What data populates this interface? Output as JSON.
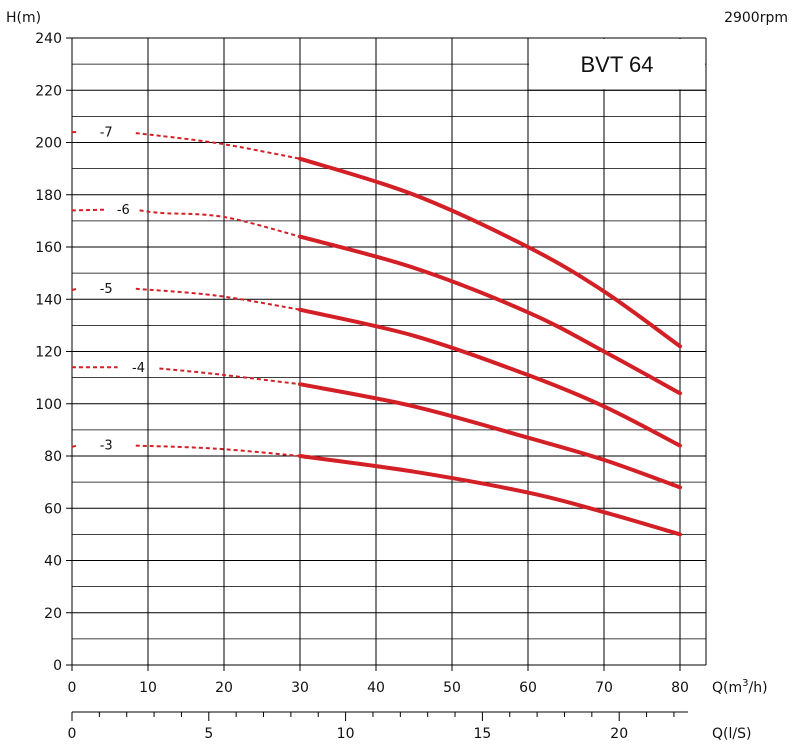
{
  "chart_data": {
    "type": "line",
    "title": "BVT 64",
    "speed": "2900rpm",
    "ylabel": "H(m)",
    "xlabel": "Q(m³/h)",
    "x2label": "Q(l/S)",
    "xlim": [
      0,
      80
    ],
    "ylim": [
      0,
      240
    ],
    "x_ticks": [
      0,
      10,
      20,
      30,
      40,
      50,
      60,
      70,
      80
    ],
    "y_ticks": [
      0,
      20,
      40,
      60,
      80,
      100,
      120,
      140,
      160,
      180,
      200,
      220,
      240
    ],
    "x2_ticks": [
      0,
      5,
      10,
      15,
      20
    ],
    "grid": true,
    "colors": {
      "curve": "#d32027",
      "grid": "#000000"
    },
    "series": [
      {
        "name": "-7",
        "dashed": [
          [
            0,
            204
          ],
          [
            0.6,
            204
          ],
          [
            8.4,
            203.6
          ],
          [
            19,
            199.8
          ],
          [
            30,
            193.8
          ]
        ],
        "solid": [
          [
            30,
            193.8
          ],
          [
            45,
            180
          ],
          [
            60,
            160
          ],
          [
            70,
            143
          ],
          [
            80,
            122
          ]
        ]
      },
      {
        "name": "-6",
        "dashed": [
          [
            0,
            174
          ],
          [
            4.6,
            174.3
          ],
          [
            8.9,
            174
          ],
          [
            11.8,
            173
          ],
          [
            20,
            171.5
          ],
          [
            30,
            164
          ]
        ],
        "solid": [
          [
            30,
            164
          ],
          [
            45,
            152
          ],
          [
            60,
            135
          ],
          [
            70,
            120
          ],
          [
            80,
            104
          ]
        ]
      },
      {
        "name": "-5",
        "dashed": [
          [
            0,
            143.5
          ],
          [
            0.6,
            144
          ],
          [
            8.4,
            144
          ],
          [
            19,
            141.4
          ],
          [
            30,
            136
          ]
        ],
        "solid": [
          [
            30,
            136
          ],
          [
            45,
            126
          ],
          [
            60,
            111
          ],
          [
            70,
            99
          ],
          [
            80,
            84
          ]
        ]
      },
      {
        "name": "-4",
        "dashed": [
          [
            0,
            114
          ],
          [
            6,
            114
          ],
          [
            11.5,
            113.5
          ],
          [
            18.5,
            111.5
          ],
          [
            30,
            107.5
          ]
        ],
        "solid": [
          [
            30,
            107.5
          ],
          [
            45,
            99
          ],
          [
            60,
            87
          ],
          [
            70,
            78.5
          ],
          [
            80,
            68
          ]
        ]
      },
      {
        "name": "-3",
        "dashed": [
          [
            0,
            83.5
          ],
          [
            0.6,
            84
          ],
          [
            8.4,
            84
          ],
          [
            19,
            82.8
          ],
          [
            30,
            80
          ]
        ],
        "solid": [
          [
            30,
            80
          ],
          [
            45,
            74
          ],
          [
            60,
            66
          ],
          [
            70,
            58.5
          ],
          [
            80,
            50
          ]
        ]
      }
    ]
  }
}
